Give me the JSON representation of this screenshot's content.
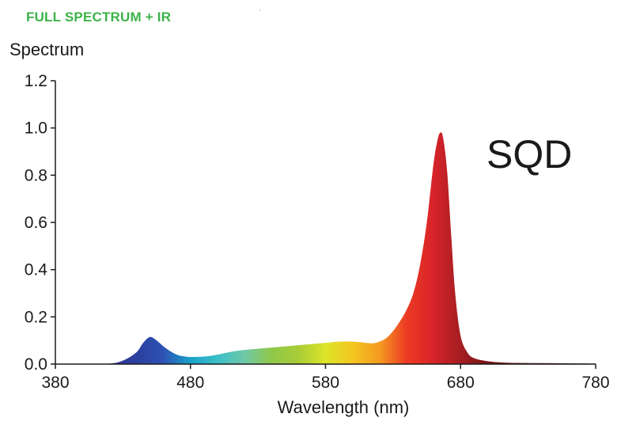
{
  "header": {
    "title": "FULL SPECTRUM + IR"
  },
  "chart_data": {
    "type": "area",
    "title": "FULL SPECTRUM + IR",
    "ylabel": "Spectrum",
    "xlabel": "Wavelength (nm)",
    "annotation": "SQD",
    "xlim": [
      380,
      780
    ],
    "ylim": [
      0,
      1.2
    ],
    "x_ticks": [
      380,
      480,
      580,
      680,
      780
    ],
    "y_ticks": [
      0.0,
      0.2,
      0.4,
      0.6,
      0.8,
      1.0,
      1.2
    ],
    "x_tick_labels": [
      "380",
      "480",
      "580",
      "680",
      "780"
    ],
    "y_tick_labels": [
      "0.0",
      "0.2",
      "0.4",
      "0.6",
      "0.8",
      "1.0",
      "1.2"
    ],
    "grid": false,
    "fill": "spectral-gradient",
    "series": [
      {
        "x": [
          400,
          420,
          430,
          440,
          445,
          450,
          455,
          460,
          465,
          470,
          475,
          480,
          490,
          500,
          510,
          520,
          540,
          560,
          580,
          590,
          600,
          610,
          615,
          620,
          625,
          630,
          635,
          640,
          645,
          650,
          655,
          660,
          663,
          665,
          667,
          670,
          673,
          676,
          680,
          685,
          690,
          700,
          710,
          720,
          740,
          760,
          780
        ],
        "y": [
          0.0,
          0.002,
          0.015,
          0.05,
          0.09,
          0.115,
          0.1,
          0.075,
          0.055,
          0.04,
          0.033,
          0.03,
          0.032,
          0.04,
          0.052,
          0.06,
          0.07,
          0.08,
          0.09,
          0.095,
          0.095,
          0.09,
          0.088,
          0.095,
          0.11,
          0.14,
          0.18,
          0.23,
          0.3,
          0.42,
          0.6,
          0.85,
          0.95,
          0.98,
          0.96,
          0.82,
          0.55,
          0.3,
          0.12,
          0.05,
          0.025,
          0.012,
          0.007,
          0.005,
          0.004,
          0.003,
          0.002
        ]
      }
    ]
  },
  "colors": {
    "title_green": "#3cb34a",
    "spectral_stops": [
      {
        "nm": 400,
        "color": "#3a2f8c"
      },
      {
        "nm": 440,
        "color": "#2a3f9e"
      },
      {
        "nm": 460,
        "color": "#2d52b4"
      },
      {
        "nm": 480,
        "color": "#1aa3c9"
      },
      {
        "nm": 500,
        "color": "#3bbfc8"
      },
      {
        "nm": 520,
        "color": "#6fc8a8"
      },
      {
        "nm": 540,
        "color": "#8fc84a"
      },
      {
        "nm": 560,
        "color": "#a9cc37"
      },
      {
        "nm": 580,
        "color": "#dde52a"
      },
      {
        "nm": 600,
        "color": "#f2c620"
      },
      {
        "nm": 620,
        "color": "#f59a20"
      },
      {
        "nm": 640,
        "color": "#ec3a24"
      },
      {
        "nm": 660,
        "color": "#d8232a"
      },
      {
        "nm": 680,
        "color": "#a41e22"
      },
      {
        "nm": 700,
        "color": "#7a1517"
      },
      {
        "nm": 780,
        "color": "#3a0a0a"
      }
    ]
  }
}
